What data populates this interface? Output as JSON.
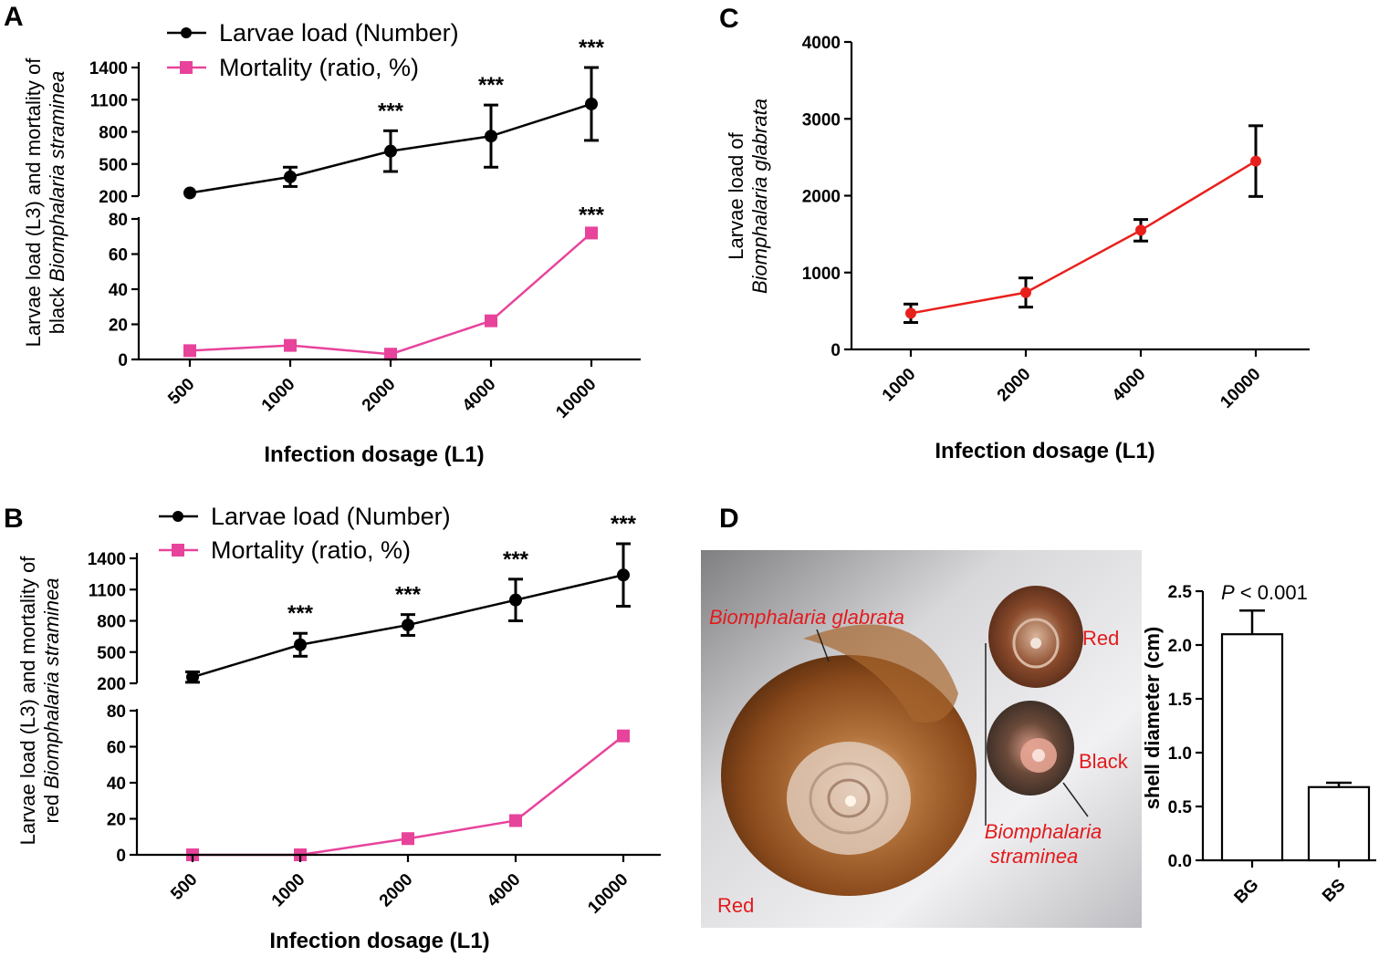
{
  "panels": {
    "A": "A",
    "B": "B",
    "C": "C",
    "D": "D"
  },
  "colors": {
    "black": "#000000",
    "pink": "#e8439b",
    "red": "#e8201c",
    "label_red": "#e31a1c"
  },
  "chart_data": [
    {
      "id": "A",
      "type": "line",
      "ylabel_line1": "Larvae load (L3)  and mortality of",
      "ylabel_line2_prefix": "black ",
      "ylabel_line2_italic": "Biomphalaria straminea",
      "xlabel": "Infection dosage (L1)",
      "categories": [
        "500",
        "1000",
        "2000",
        "4000",
        "10000"
      ],
      "legend": [
        "Larvae load (Number)",
        "Mortality (ratio, %)"
      ],
      "upper": {
        "ylim": [
          200,
          1400
        ],
        "ticks": [
          "200",
          "500",
          "800",
          "1100",
          "1400"
        ],
        "series": [
          {
            "name": "Larvae load (Number)",
            "values": [
              230,
              380,
              620,
              760,
              1060
            ],
            "errors": [
              0,
              90,
              190,
              290,
              340
            ],
            "significance": [
              "",
              "",
              "***",
              "***",
              "***"
            ]
          }
        ]
      },
      "lower": {
        "ylim": [
          0,
          80
        ],
        "ticks": [
          "0",
          "20",
          "40",
          "60",
          "80"
        ],
        "series": [
          {
            "name": "Mortality (ratio, %)",
            "values": [
              5,
              8,
              3,
              22,
              72
            ],
            "significance": [
              "",
              "",
              "",
              "",
              "***"
            ]
          }
        ]
      }
    },
    {
      "id": "B",
      "type": "line",
      "ylabel_line1": "Larvae load (L3) and mortality of",
      "ylabel_line2_prefix": "red ",
      "ylabel_line2_italic": "Biomphalaria straminea",
      "xlabel": "Infection dosage (L1)",
      "categories": [
        "500",
        "1000",
        "2000",
        "4000",
        "10000"
      ],
      "legend": [
        "Larvae load (Number)",
        "Mortality (ratio, %)"
      ],
      "upper": {
        "ylim": [
          200,
          1400
        ],
        "ticks": [
          "200",
          "500",
          "800",
          "1100",
          "1400"
        ],
        "series": [
          {
            "name": "Larvae load (Number)",
            "values": [
              260,
              570,
              760,
              1000,
              1240
            ],
            "errors": [
              50,
              110,
              100,
              200,
              300
            ],
            "significance": [
              "",
              "***",
              "***",
              "***",
              "***"
            ]
          }
        ]
      },
      "lower": {
        "ylim": [
          0,
          80
        ],
        "ticks": [
          "0",
          "20",
          "40",
          "60",
          "80"
        ],
        "series": [
          {
            "name": "Mortality (ratio, %)",
            "values": [
              0,
              0,
              9,
              19,
              66
            ],
            "significance": [
              "",
              "",
              "",
              "",
              ""
            ]
          }
        ]
      }
    },
    {
      "id": "C",
      "type": "line",
      "ylabel_line1": "Larvae load of",
      "ylabel_line2_prefix": "",
      "ylabel_line2_italic": "Biomphalaria glabrata",
      "xlabel": "Infection dosage (L1)",
      "categories": [
        "1000",
        "2000",
        "4000",
        "10000"
      ],
      "ylim": [
        0,
        4000
      ],
      "ticks": [
        "0",
        "1000",
        "2000",
        "3000",
        "4000"
      ],
      "series": [
        {
          "name": "Larvae load",
          "values": [
            470,
            740,
            1550,
            2450
          ],
          "errors": [
            120,
            190,
            140,
            460
          ]
        }
      ]
    },
    {
      "id": "D",
      "type": "bar",
      "ylabel": "shell diameter (cm)",
      "categories": [
        "BG",
        "BS"
      ],
      "values": [
        2.1,
        0.68
      ],
      "errors": [
        0.22,
        0.04
      ],
      "ylim": [
        0,
        2.5
      ],
      "ticks": [
        "0.0",
        "0.5",
        "1.0",
        "1.5",
        "2.0",
        "2.5"
      ],
      "annotation_italic": "P",
      "annotation_rest": " < 0.001"
    }
  ],
  "photo": {
    "label_glabrata": "Biomphalaria glabrata",
    "label_straminea_1": "Biomphalaria",
    "label_straminea_2": "straminea",
    "label_red_big": "Red",
    "label_red_small": "Red",
    "label_black": "Black"
  }
}
